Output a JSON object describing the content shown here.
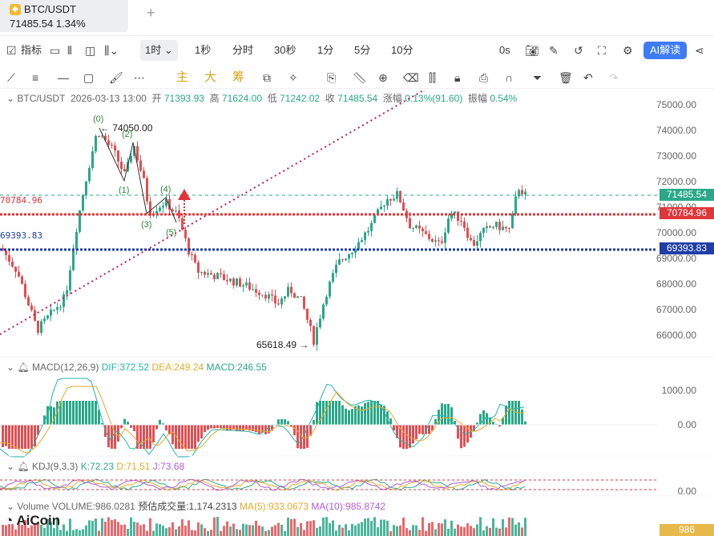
{
  "tab": {
    "symbol": "BTC/USDT",
    "price_line": "71485.54  1.34%",
    "add": "+"
  },
  "toolbar1": {
    "indicators": "指标",
    "interval_selected": "1时",
    "intervals": [
      "1秒",
      "分时",
      "30秒",
      "1分",
      "5分",
      "10分"
    ],
    "countdown": "0s",
    "ai_label": "AI解读"
  },
  "toolbar2": {
    "zh_main": "主",
    "zh_big": "大",
    "zh_chip": "筹"
  },
  "ohlc": {
    "symbol": "BTC/USDT",
    "datetime": "2026-03-13 13:00",
    "open_label": "开",
    "open": "71393.93",
    "high_label": "高",
    "high": "71624.00",
    "low_label": "低",
    "low": "71242.02",
    "close_label": "收",
    "close": "71485.54",
    "change_label": "涨幅",
    "change": "0.13%(91.60)",
    "amp_label": "振幅",
    "amp": "0.54%"
  },
  "price_axis": [
    "75000.00",
    "74000.00",
    "73000.00",
    "72000.00",
    "71000.00",
    "70000.00",
    "69000.00",
    "68000.00",
    "67000.00",
    "66000.00"
  ],
  "price_tags": {
    "last": "71485.54",
    "red_line": "70784.96",
    "blue_line": "69393.83"
  },
  "left_levels": {
    "red": "70784.96",
    "blue": "69393.83"
  },
  "annotations": {
    "high": "74050.00",
    "low": "65618.49",
    "waves": [
      "(0)",
      "(1)",
      "(2)",
      "(3)",
      "(4)",
      "(5)"
    ]
  },
  "macd": {
    "title": "MACD(12,26,9)",
    "dif": "DIF:372.52",
    "dea": "DEA:249.24",
    "macd": "MACD:246.55",
    "axis": [
      "1000.00",
      "0.00"
    ]
  },
  "kdj": {
    "title": "KDJ(9,3,3)",
    "k": "K:72.23",
    "d": "D:71.51",
    "j": "J:73.68",
    "axis": [
      "0.00"
    ]
  },
  "volume": {
    "title": "Volume",
    "volume": "VOLUME:986.0281",
    "est": "预估成交量:1,174.2313",
    "ma5": "MA(5):933.0673",
    "ma10": "MA(10):985.8742",
    "tag": "986"
  },
  "brand": "AiCoin",
  "colors": {
    "up": "#2aa889",
    "down": "#e54d52",
    "red_line": "#e0353a",
    "blue_line": "#1f3fa6",
    "ai": "#3d7bf7"
  }
}
